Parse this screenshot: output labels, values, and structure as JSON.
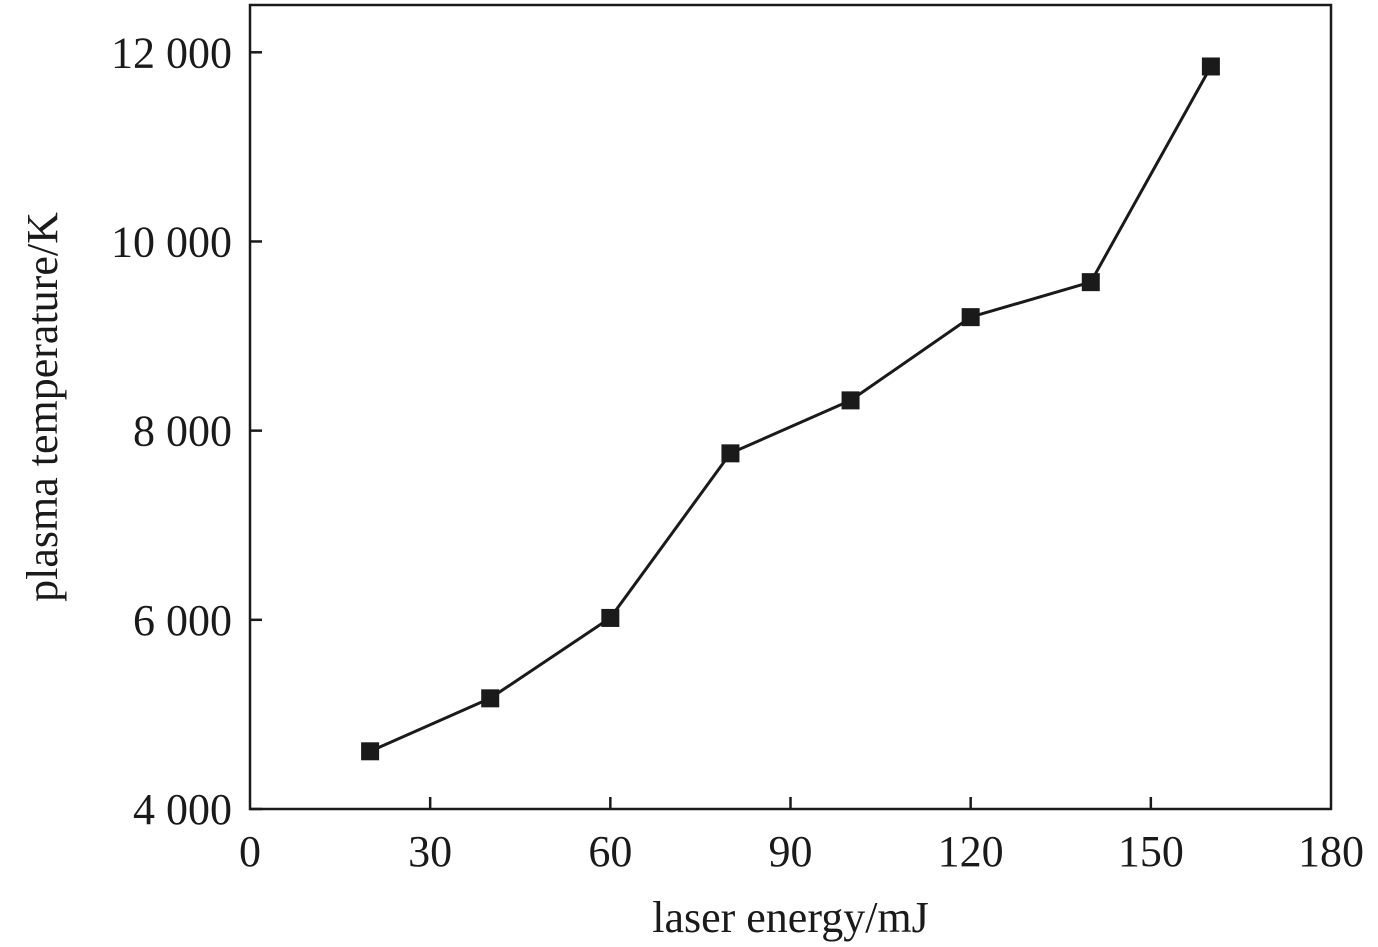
{
  "chart_data": {
    "type": "line",
    "title": "",
    "xlabel": "laser energy/mJ",
    "ylabel": "plasma temperature/K",
    "xlim": [
      0,
      180
    ],
    "ylim": [
      4000,
      12500
    ],
    "xticks": [
      0,
      30,
      60,
      90,
      120,
      150,
      180
    ],
    "xtick_labels": [
      "0",
      "30",
      "60",
      "90",
      "120",
      "150",
      "180"
    ],
    "yticks": [
      4000,
      6000,
      8000,
      10000,
      12000
    ],
    "ytick_labels": [
      "4 000",
      "6 000",
      "8 000",
      "10 000",
      "12 000"
    ],
    "grid": false,
    "legend": "none",
    "series": [
      {
        "marker": "square",
        "color": "#1a1a1a",
        "x": [
          20,
          40,
          60,
          80,
          100,
          120,
          140,
          160
        ],
        "y": [
          4610,
          5170,
          6020,
          7760,
          8320,
          9200,
          9570,
          11850
        ]
      }
    ]
  }
}
